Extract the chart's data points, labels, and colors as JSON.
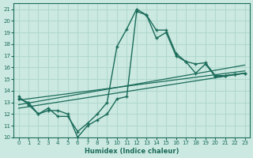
{
  "xlabel": "Humidex (Indice chaleur)",
  "xlim": [
    -0.5,
    23.5
  ],
  "ylim": [
    10,
    21.5
  ],
  "xticks": [
    0,
    1,
    2,
    3,
    4,
    5,
    6,
    7,
    8,
    9,
    10,
    11,
    12,
    13,
    14,
    15,
    16,
    17,
    18,
    19,
    20,
    21,
    22,
    23
  ],
  "yticks": [
    10,
    11,
    12,
    13,
    14,
    15,
    16,
    17,
    18,
    19,
    20,
    21
  ],
  "background_color": "#cce9e1",
  "grid_color": "#b0d8ce",
  "line_color": "#1a6b5a",
  "curve1_x": [
    0,
    1,
    2,
    3,
    4,
    5,
    6,
    7,
    8,
    9,
    10,
    11,
    12,
    13,
    14,
    15,
    16,
    17,
    18,
    19,
    20,
    21,
    22,
    23
  ],
  "curve1_y": [
    13.5,
    12.8,
    12.0,
    12.5,
    11.8,
    11.8,
    10.5,
    11.2,
    12.0,
    13.0,
    17.8,
    19.3,
    21.0,
    20.5,
    19.2,
    19.2,
    17.2,
    16.5,
    16.3,
    16.4,
    15.3,
    15.3,
    15.4,
    15.5
  ],
  "curve2_x": [
    0,
    1,
    2,
    3,
    4,
    5,
    6,
    7,
    8,
    9,
    10,
    11,
    12,
    13,
    14,
    15,
    16,
    17,
    18,
    19,
    20,
    21,
    22,
    23
  ],
  "curve2_y": [
    13.3,
    13.0,
    12.0,
    12.3,
    12.3,
    12.0,
    10.0,
    11.0,
    11.5,
    12.0,
    13.3,
    13.5,
    20.8,
    20.5,
    18.5,
    19.0,
    17.0,
    16.5,
    15.5,
    16.3,
    15.2,
    15.3,
    15.4,
    15.5
  ],
  "line1_x": [
    0,
    23
  ],
  "line1_y": [
    12.5,
    15.5
  ],
  "line2_x": [
    0,
    23
  ],
  "line2_y": [
    12.8,
    16.2
  ],
  "line3_x": [
    0,
    23
  ],
  "line3_y": [
    13.2,
    15.7
  ]
}
